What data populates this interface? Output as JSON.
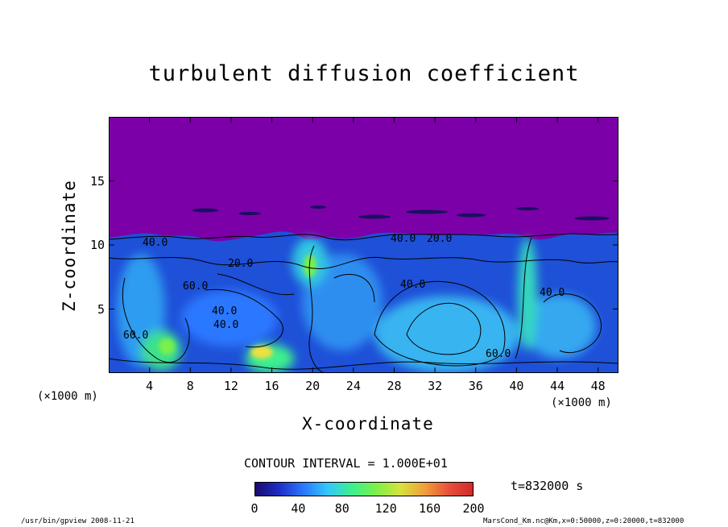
{
  "chart_data": {
    "type": "heatmap",
    "title": "turbulent diffusion coefficient",
    "xlabel": "X-coordinate",
    "ylabel": "Z-coordinate",
    "x_unit": "(×1000 m)",
    "y_unit": "(×1000 m)",
    "xlim": [
      0,
      50
    ],
    "ylim": [
      0,
      20
    ],
    "x_ticks": [
      "4",
      "8",
      "12",
      "16",
      "20",
      "24",
      "28",
      "32",
      "36",
      "40",
      "44",
      "48"
    ],
    "y_ticks": [
      "5",
      "10",
      "15"
    ],
    "contour_labels": [
      "40.0",
      "20.0",
      "60.0",
      "40.0",
      "40.0",
      "20.0",
      "40.0",
      "40.0",
      "60.0",
      "40.0",
      "60.0"
    ],
    "contour_interval": "CONTOUR INTERVAL = 1.000E+01",
    "colorbar": {
      "ticks": [
        "0",
        "40",
        "80",
        "120",
        "160",
        "200"
      ],
      "range": [
        0,
        200
      ],
      "colors": [
        "#1a0a6e",
        "#1f2fc8",
        "#2a78ff",
        "#33c8ff",
        "#3cf08c",
        "#7cf04a",
        "#d8e23c",
        "#f0a03c",
        "#e8503c",
        "#d02a2a"
      ]
    },
    "background_color": "#7b00a8",
    "time": "t=832000 s"
  },
  "footer": {
    "left": "/usr/bin/gpview   2008-11-21",
    "right": "MarsCond_Km.nc@Km,x=0:50000,z=0:20000,t=832000"
  }
}
